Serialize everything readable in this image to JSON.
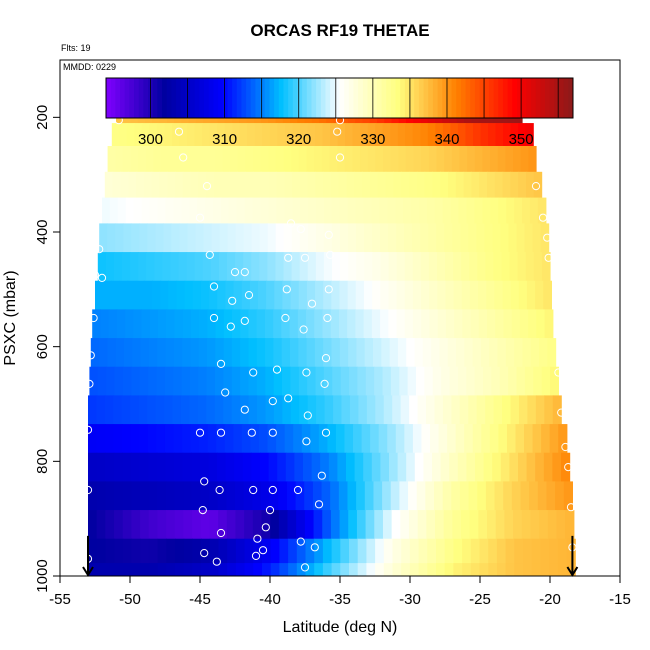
{
  "chart_data": {
    "type": "heatmap",
    "title": "ORCAS RF19 THETAE",
    "flight_note": "Flts: 19",
    "date_note": "MMDD: 0229",
    "xlabel": "Latitude (deg N)",
    "ylabel": "PSXC (mbar)",
    "xlim": [
      -55,
      -15
    ],
    "ylim": [
      1000,
      100
    ],
    "x_ticks": [
      -55,
      -50,
      -45,
      -40,
      -35,
      -30,
      -25,
      -20,
      -15
    ],
    "y_ticks": [
      200,
      400,
      600,
      800,
      1000
    ],
    "colorbar": {
      "range": [
        294,
        357
      ],
      "ticks": [
        300,
        310,
        320,
        330,
        340,
        350
      ],
      "colors": [
        "#8000ff",
        "#0000a0",
        "#0000ff",
        "#00bfff",
        "#ffffff",
        "#ffff80",
        "#ff8000",
        "#ff0000",
        "#8b1a1a"
      ]
    },
    "layers": [
      {
        "p": 190,
        "lat_min": -51.0,
        "lat_max": -22.0,
        "theta": [
          337,
          338,
          339,
          340,
          342,
          345,
          350,
          355,
          356
        ]
      },
      {
        "p": 230,
        "lat_min": -51.3,
        "lat_max": -21.2,
        "theta": [
          333,
          334,
          335,
          336,
          337,
          339,
          341,
          346,
          350
        ]
      },
      {
        "p": 270,
        "lat_min": -51.6,
        "lat_max": -21.0,
        "theta": [
          331,
          332,
          332,
          333,
          334,
          335,
          336,
          338,
          340
        ]
      },
      {
        "p": 320,
        "lat_min": -51.8,
        "lat_max": -20.6,
        "theta": [
          328,
          329,
          330,
          330,
          331,
          332,
          333,
          335,
          337
        ]
      },
      {
        "p": 360,
        "lat_min": -52.0,
        "lat_max": -20.3,
        "theta": [
          325,
          326,
          327,
          328,
          329,
          330,
          331,
          333,
          335
        ]
      },
      {
        "p": 410,
        "lat_min": -52.2,
        "lat_max": -20.1,
        "theta": [
          322,
          323,
          324,
          325,
          327,
          329,
          331,
          333,
          335
        ]
      },
      {
        "p": 460,
        "lat_min": -52.3,
        "lat_max": -20.0,
        "theta": [
          318,
          319,
          320,
          322,
          325,
          327,
          330,
          333,
          335
        ]
      },
      {
        "p": 510,
        "lat_min": -52.5,
        "lat_max": -19.9,
        "theta": [
          317,
          317,
          318,
          320,
          323,
          326,
          329,
          332,
          335
        ]
      },
      {
        "p": 560,
        "lat_min": -52.7,
        "lat_max": -19.8,
        "theta": [
          315,
          316,
          317,
          319,
          322,
          325,
          328,
          331,
          334
        ]
      },
      {
        "p": 610,
        "lat_min": -52.8,
        "lat_max": -19.6,
        "theta": [
          314,
          315,
          316,
          318,
          321,
          324,
          327,
          330,
          333
        ]
      },
      {
        "p": 660,
        "lat_min": -52.9,
        "lat_max": -19.4,
        "theta": [
          313,
          314,
          315,
          317,
          320,
          323,
          327,
          330,
          334
        ]
      },
      {
        "p": 710,
        "lat_min": -53.0,
        "lat_max": -19.2,
        "theta": [
          312,
          313,
          314,
          316,
          319,
          323,
          328,
          333,
          338
        ]
      },
      {
        "p": 760,
        "lat_min": -53.0,
        "lat_max": -18.8,
        "theta": [
          309,
          310,
          311,
          313,
          317,
          322,
          328,
          334,
          340
        ]
      },
      {
        "p": 810,
        "lat_min": -53.0,
        "lat_max": -18.6,
        "theta": [
          305,
          306,
          307,
          310,
          315,
          322,
          329,
          335,
          341
        ]
      },
      {
        "p": 860,
        "lat_min": -53.0,
        "lat_max": -18.4,
        "theta": [
          303,
          304,
          305,
          308,
          314,
          323,
          331,
          336,
          340
        ]
      },
      {
        "p": 910,
        "lat_min": -53.0,
        "lat_max": -18.3,
        "theta": [
          302,
          298,
          296,
          301,
          314,
          325,
          332,
          336,
          338
        ]
      },
      {
        "p": 960,
        "lat_min": -53.0,
        "lat_max": -18.2,
        "theta": [
          302,
          301,
          303,
          309,
          318,
          327,
          333,
          337,
          338
        ]
      },
      {
        "p": 995,
        "lat_min": -53.0,
        "lat_max": -18.2,
        "theta": [
          303,
          303,
          305,
          311,
          320,
          328,
          334,
          337,
          338
        ]
      }
    ],
    "flight_points": [
      {
        "lat": -50.7,
        "p": 190
      },
      {
        "lat": -50.2,
        "p": 190
      },
      {
        "lat": -49.6,
        "p": 190
      },
      {
        "lat": -49.0,
        "p": 190
      },
      {
        "lat": -48.4,
        "p": 190
      },
      {
        "lat": -47.8,
        "p": 190
      },
      {
        "lat": -47.2,
        "p": 190
      },
      {
        "lat": -46.6,
        "p": 190
      },
      {
        "lat": -50.8,
        "p": 205
      },
      {
        "lat": -34.8,
        "p": 190
      },
      {
        "lat": -34.2,
        "p": 190
      },
      {
        "lat": -33.5,
        "p": 190
      },
      {
        "lat": -32.8,
        "p": 190
      },
      {
        "lat": -32.1,
        "p": 190
      },
      {
        "lat": -31.4,
        "p": 190
      },
      {
        "lat": -30.7,
        "p": 190
      },
      {
        "lat": -30.0,
        "p": 190
      },
      {
        "lat": -29.3,
        "p": 190
      },
      {
        "lat": -28.6,
        "p": 190
      },
      {
        "lat": -27.9,
        "p": 190
      },
      {
        "lat": -27.2,
        "p": 190
      },
      {
        "lat": -26.5,
        "p": 190
      },
      {
        "lat": -25.8,
        "p": 190
      },
      {
        "lat": -25.1,
        "p": 190
      },
      {
        "lat": -24.4,
        "p": 190
      },
      {
        "lat": -23.7,
        "p": 190
      },
      {
        "lat": -23.0,
        "p": 190
      },
      {
        "lat": -22.3,
        "p": 190
      },
      {
        "lat": -35.0,
        "p": 205
      },
      {
        "lat": -46.5,
        "p": 225
      },
      {
        "lat": -35.2,
        "p": 225
      },
      {
        "lat": -46.2,
        "p": 270
      },
      {
        "lat": -35.0,
        "p": 270
      },
      {
        "lat": -44.5,
        "p": 320
      },
      {
        "lat": -21.0,
        "p": 320
      },
      {
        "lat": -45.0,
        "p": 375
      },
      {
        "lat": -20.5,
        "p": 375
      },
      {
        "lat": -38.5,
        "p": 385
      },
      {
        "lat": -37.8,
        "p": 395
      },
      {
        "lat": -35.8,
        "p": 405
      },
      {
        "lat": -20.2,
        "p": 410
      },
      {
        "lat": -52.2,
        "p": 430
      },
      {
        "lat": -44.3,
        "p": 440
      },
      {
        "lat": -38.7,
        "p": 445
      },
      {
        "lat": -37.5,
        "p": 445
      },
      {
        "lat": -35.7,
        "p": 440
      },
      {
        "lat": -20.1,
        "p": 445
      },
      {
        "lat": -52.5,
        "p": 475
      },
      {
        "lat": -42.5,
        "p": 470
      },
      {
        "lat": -41.8,
        "p": 470
      },
      {
        "lat": -52.0,
        "p": 480
      },
      {
        "lat": -44.0,
        "p": 495
      },
      {
        "lat": -41.5,
        "p": 510
      },
      {
        "lat": -38.8,
        "p": 500
      },
      {
        "lat": -35.8,
        "p": 500
      },
      {
        "lat": -42.7,
        "p": 520
      },
      {
        "lat": -37.0,
        "p": 525
      },
      {
        "lat": -52.6,
        "p": 550
      },
      {
        "lat": -44.0,
        "p": 550
      },
      {
        "lat": -41.8,
        "p": 555
      },
      {
        "lat": -38.9,
        "p": 550
      },
      {
        "lat": -35.9,
        "p": 550
      },
      {
        "lat": -42.8,
        "p": 565
      },
      {
        "lat": -37.6,
        "p": 570
      },
      {
        "lat": -52.8,
        "p": 615
      },
      {
        "lat": -43.5,
        "p": 630
      },
      {
        "lat": -41.2,
        "p": 645
      },
      {
        "lat": -39.5,
        "p": 640
      },
      {
        "lat": -37.4,
        "p": 645
      },
      {
        "lat": -36.0,
        "p": 620
      },
      {
        "lat": -19.4,
        "p": 645
      },
      {
        "lat": -52.9,
        "p": 665
      },
      {
        "lat": -43.2,
        "p": 680
      },
      {
        "lat": -36.1,
        "p": 665
      },
      {
        "lat": -41.8,
        "p": 710
      },
      {
        "lat": -39.8,
        "p": 695
      },
      {
        "lat": -38.7,
        "p": 690
      },
      {
        "lat": -37.3,
        "p": 720
      },
      {
        "lat": -19.2,
        "p": 715
      },
      {
        "lat": -53.0,
        "p": 745
      },
      {
        "lat": -45.0,
        "p": 750
      },
      {
        "lat": -43.5,
        "p": 750
      },
      {
        "lat": -41.3,
        "p": 750
      },
      {
        "lat": -39.8,
        "p": 750
      },
      {
        "lat": -37.4,
        "p": 765
      },
      {
        "lat": -36.0,
        "p": 750
      },
      {
        "lat": -18.9,
        "p": 775
      },
      {
        "lat": -18.7,
        "p": 810
      },
      {
        "lat": -36.3,
        "p": 825
      },
      {
        "lat": -44.7,
        "p": 835
      },
      {
        "lat": -43.6,
        "p": 850
      },
      {
        "lat": -41.2,
        "p": 850
      },
      {
        "lat": -39.8,
        "p": 850
      },
      {
        "lat": -38.0,
        "p": 850
      },
      {
        "lat": -53.0,
        "p": 850
      },
      {
        "lat": -44.8,
        "p": 885
      },
      {
        "lat": -40.0,
        "p": 885
      },
      {
        "lat": -36.5,
        "p": 875
      },
      {
        "lat": -18.5,
        "p": 880
      },
      {
        "lat": -40.3,
        "p": 915
      },
      {
        "lat": -43.5,
        "p": 925
      },
      {
        "lat": -40.9,
        "p": 935
      },
      {
        "lat": -37.8,
        "p": 940
      },
      {
        "lat": -36.8,
        "p": 950
      },
      {
        "lat": -44.7,
        "p": 960
      },
      {
        "lat": -41.0,
        "p": 965
      },
      {
        "lat": -40.5,
        "p": 955
      },
      {
        "lat": -43.8,
        "p": 975
      },
      {
        "lat": -37.5,
        "p": 985
      },
      {
        "lat": -53.0,
        "p": 970
      },
      {
        "lat": -18.4,
        "p": 950
      }
    ],
    "arrows": [
      {
        "lat": -53.0,
        "direction": "down"
      },
      {
        "lat": -18.4,
        "direction": "down"
      }
    ]
  }
}
